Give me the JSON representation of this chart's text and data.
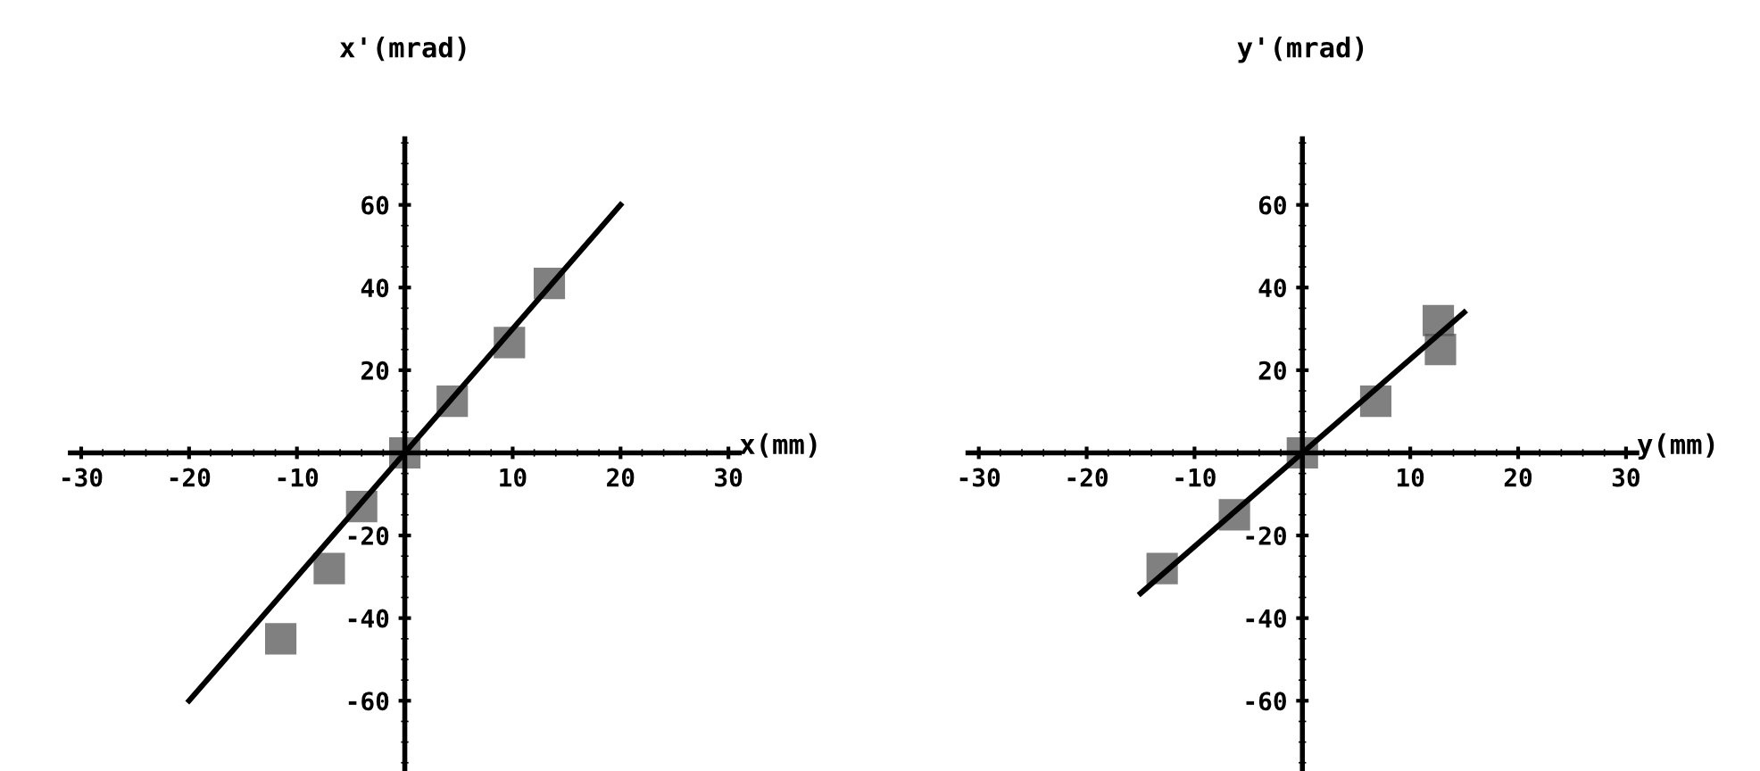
{
  "chart_data": [
    {
      "type": "scatter",
      "xlabel": "x(mm)",
      "ylabel": "x'(mrad)",
      "xlim": [
        -31,
        31
      ],
      "ylim": [
        -77,
        76
      ],
      "xticks": [
        -30,
        -20,
        -10,
        10,
        20,
        30
      ],
      "yticks": [
        -60,
        -40,
        -20,
        20,
        40,
        60
      ],
      "grid": false,
      "series": [
        {
          "color": "#555555",
          "marker": "square",
          "x": [
            0,
            4.4,
            9.7,
            13.4,
            -4,
            -7,
            -11.5
          ],
          "values": [
            0,
            12.5,
            26.7,
            41,
            -13,
            -28,
            -45
          ]
        },
        {
          "type": "line",
          "color": "#000000",
          "x": [
            -20,
            20
          ],
          "values": [
            -60,
            60
          ]
        }
      ]
    },
    {
      "type": "scatter",
      "xlabel": "y(mm)",
      "ylabel": "y'(mrad)",
      "xlim": [
        -31,
        31
      ],
      "ylim": [
        -77,
        76
      ],
      "xticks": [
        -30,
        -20,
        -10,
        10,
        20,
        30
      ],
      "yticks": [
        -60,
        -40,
        -20,
        20,
        40,
        60
      ],
      "grid": false,
      "series": [
        {
          "color": "#555555",
          "marker": "square",
          "x": [
            0,
            6.8,
            12.8,
            12.6,
            -6.3,
            -13
          ],
          "values": [
            0,
            12.5,
            25,
            32,
            -15,
            -28
          ]
        },
        {
          "type": "line",
          "color": "#000000",
          "x": [
            -15,
            15
          ],
          "values": [
            -34,
            34
          ]
        }
      ]
    }
  ]
}
